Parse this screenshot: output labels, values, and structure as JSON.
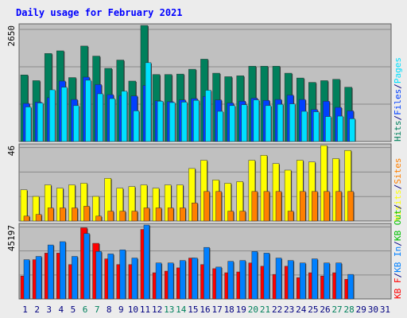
{
  "colors": {
    "page_bg": "#ececec",
    "panel_bg": "#c0c0c0",
    "grid": "#8a8a8a",
    "title": "#0000ff",
    "hits": "#00805c",
    "files": "#0040ff",
    "pages": "#00e0ff",
    "visits": "#ffff00",
    "sites": "#ff8000",
    "kb_f": "#ff0000",
    "kb_in": "#0080ff",
    "kb_out": "#00c000",
    "weekend": "#00805c",
    "weekday": "#000080"
  },
  "chart_data": {
    "type": "bar",
    "title": "Daily usage for February 2021",
    "categories": [
      "1",
      "2",
      "3",
      "4",
      "5",
      "6",
      "7",
      "8",
      "9",
      "10",
      "11",
      "12",
      "13",
      "14",
      "15",
      "16",
      "17",
      "18",
      "19",
      "20",
      "21",
      "22",
      "23",
      "24",
      "25",
      "26",
      "27",
      "28",
      "29",
      "30",
      "31"
    ],
    "weekend_days": [
      "6",
      "7",
      "13",
      "14",
      "20",
      "21",
      "27",
      "28"
    ],
    "panels": [
      {
        "id": "hits",
        "max_label": "2650",
        "ymax": 2650,
        "side_labels": [
          {
            "text": "Hits",
            "color": "#00805c"
          },
          {
            "text": "/",
            "color": "#000080"
          },
          {
            "text": "Files",
            "color": "#0040ff"
          },
          {
            "text": "/",
            "color": "#000080"
          },
          {
            "text": "Pages",
            "color": "#00e0ff"
          }
        ],
        "series": [
          {
            "name": "Hits",
            "color": "#00805c",
            "values": [
              1520,
              1390,
              2010,
              2070,
              1460,
              2180,
              1950,
              1670,
              1860,
              1380,
              2650,
              1530,
              1530,
              1540,
              1650,
              1880,
              1560,
              1480,
              1500,
              1720,
              1720,
              1720,
              1560,
              1450,
              1350,
              1390,
              1420,
              1240,
              0,
              0,
              0
            ]
          },
          {
            "name": "Files",
            "color": "#0040ff",
            "values": [
              870,
              900,
              1000,
              1380,
              960,
              1470,
              1300,
              1070,
              1050,
              1040,
              1280,
              930,
              910,
              950,
              980,
              1030,
              950,
              880,
              920,
              990,
              940,
              960,
              1060,
              960,
              730,
              920,
              780,
              700,
              0,
              0,
              0
            ]
          },
          {
            "name": "Pages",
            "color": "#00e0ff",
            "values": [
              790,
              880,
              1180,
              1240,
              820,
              1400,
              1090,
              980,
              1150,
              700,
              1800,
              920,
              890,
              900,
              940,
              1170,
              690,
              820,
              840,
              950,
              820,
              850,
              860,
              690,
              680,
              570,
              580,
              520,
              0,
              0,
              0
            ]
          }
        ]
      },
      {
        "id": "visits",
        "max_label": "46",
        "ymax": 46,
        "side_labels": [
          {
            "text": "Visits",
            "color": "#ffff00"
          },
          {
            "text": "/",
            "color": "#000080"
          },
          {
            "text": "Sites",
            "color": "#ff8000"
          }
        ],
        "series": [
          {
            "name": "Visits",
            "color": "#ffff00",
            "values": [
              19,
              15,
              22,
              20,
              22,
              23,
              15,
              26,
              20,
              21,
              22,
              20,
              22,
              22,
              32,
              37,
              25,
              23,
              24,
              37,
              40,
              35,
              31,
              37,
              36,
              46,
              38,
              43,
              0,
              0,
              0
            ]
          },
          {
            "name": "Sites",
            "color": "#ff8000",
            "values": [
              3,
              4,
              8,
              8,
              8,
              9,
              3,
              6,
              6,
              6,
              8,
              8,
              8,
              8,
              11,
              18,
              18,
              6,
              6,
              18,
              18,
              18,
              6,
              18,
              18,
              18,
              18,
              18,
              0,
              0,
              0
            ]
          }
        ]
      },
      {
        "id": "kbytes",
        "max_label": "45197",
        "ymax": 45197,
        "side_labels": [
          {
            "text": "KB F",
            "color": "#ff0000"
          },
          {
            "text": "/",
            "color": "#000080"
          },
          {
            "text": "KB In",
            "color": "#0080ff"
          },
          {
            "text": "/",
            "color": "#000080"
          },
          {
            "text": "KB Out",
            "color": "#00c000"
          },
          {
            "text": "/",
            "color": "#000080"
          }
        ],
        "series": [
          {
            "name": "KB F",
            "color": "#ff0000",
            "values": [
              14000,
              24000,
              28000,
              28000,
              21000,
              43500,
              34000,
              24500,
              21000,
              21000,
              42500,
              16000,
              17000,
              19000,
              25000,
              21000,
              18500,
              16000,
              16500,
              22000,
              20000,
              15000,
              20000,
              13000,
              16000,
              14000,
              16000,
              12000,
              0,
              0,
              0
            ]
          },
          {
            "name": "KB In",
            "color": "#0080ff",
            "values": [
              24000,
              26000,
              33000,
              35000,
              26000,
              40000,
              29000,
              27500,
              30000,
              25000,
              45197,
              22000,
              22000,
              23500,
              25000,
              31500,
              19500,
              23000,
              23500,
              29000,
              28000,
              25000,
              23500,
              22000,
              24500,
              22000,
              22000,
              15000,
              0,
              0,
              0
            ]
          }
        ]
      }
    ]
  }
}
